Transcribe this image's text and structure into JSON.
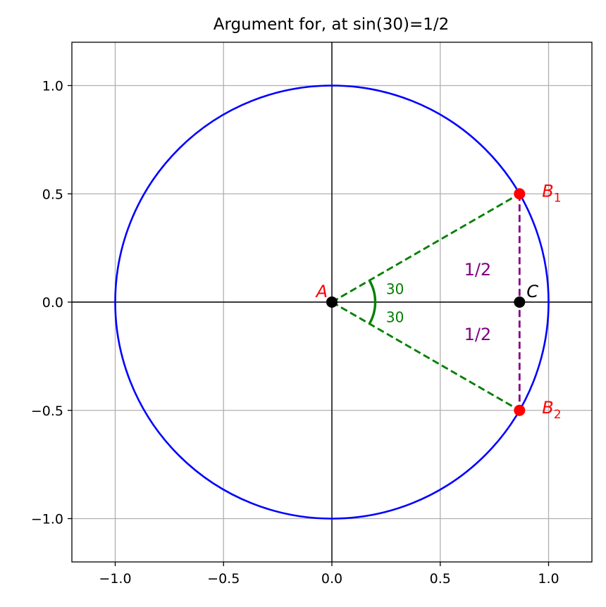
{
  "chart_data": {
    "type": "scatter",
    "title": "Argument for, at sin(30)=1/2",
    "xlabel": "",
    "ylabel": "",
    "xlim": [
      -1.2,
      1.2
    ],
    "ylim": [
      -1.2,
      1.2
    ],
    "grid": true,
    "aspect": "equal",
    "xticks": [
      -1.0,
      -0.5,
      0.0,
      0.5,
      1.0
    ],
    "yticks": [
      -1.0,
      -0.5,
      0.0,
      0.5,
      1.0
    ],
    "xtick_labels": [
      "−1.0",
      "−0.5",
      "0.0",
      "0.5",
      "1.0"
    ],
    "ytick_labels": [
      "−1.0",
      "−0.5",
      "0.0",
      "0.5",
      "1.0"
    ],
    "unit_circle": {
      "center": [
        0,
        0
      ],
      "radius": 1,
      "color": "#0000ff"
    },
    "points": [
      {
        "label": "A",
        "subscript": "",
        "x": 0.0,
        "y": 0.0,
        "color": "#000000",
        "label_color": "#ff0000"
      },
      {
        "label": "B",
        "subscript": "1",
        "x": 0.866,
        "y": 0.5,
        "color": "#ff0000",
        "label_color": "#ff0000"
      },
      {
        "label": "B",
        "subscript": "2",
        "x": 0.866,
        "y": -0.5,
        "color": "#ff0000",
        "label_color": "#ff0000"
      },
      {
        "label": "C",
        "subscript": "",
        "x": 0.866,
        "y": 0.0,
        "color": "#000000",
        "label_color": "#000000"
      }
    ],
    "segments": [
      {
        "from": [
          0,
          0
        ],
        "to": [
          0.866,
          0.5
        ],
        "style": "dashed",
        "color": "#008000"
      },
      {
        "from": [
          0,
          0
        ],
        "to": [
          0.866,
          -0.5
        ],
        "style": "dashed",
        "color": "#008000"
      },
      {
        "from": [
          0.866,
          0.5
        ],
        "to": [
          0.866,
          -0.5
        ],
        "style": "dashed",
        "color": "#800080"
      }
    ],
    "angle_arc": {
      "center": [
        0,
        0
      ],
      "radius": 0.2,
      "from_deg": -30,
      "to_deg": 30,
      "color": "#008000"
    },
    "annotations": [
      {
        "text": "30",
        "x": 0.25,
        "y": 0.06,
        "color": "#008000"
      },
      {
        "text": "30",
        "x": 0.25,
        "y": -0.07,
        "color": "#008000"
      },
      {
        "text": "1/2",
        "x": 0.61,
        "y": 0.15,
        "color": "#800080"
      },
      {
        "text": "1/2",
        "x": 0.61,
        "y": -0.15,
        "color": "#800080"
      }
    ]
  }
}
